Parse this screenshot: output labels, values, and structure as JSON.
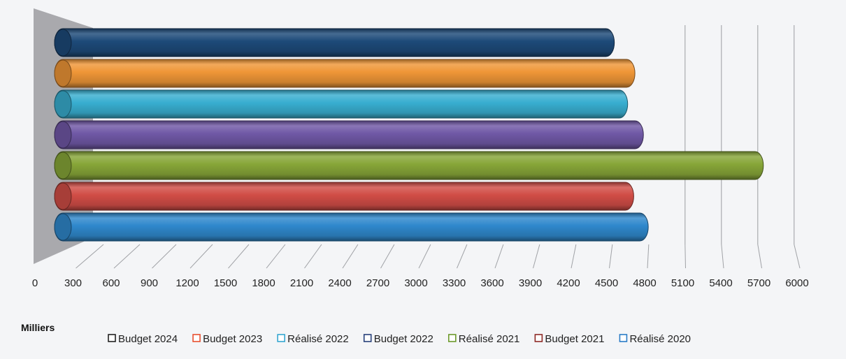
{
  "chart_data": {
    "type": "bar",
    "orientation": "horizontal",
    "style": "3d-cylinder",
    "unit_label": "Milliers",
    "xlim": [
      0,
      6000
    ],
    "x_ticks": [
      "0",
      "300",
      "600",
      "900",
      "1200",
      "1500",
      "1800",
      "2100",
      "2400",
      "2700",
      "3000",
      "3300",
      "3600",
      "3900",
      "4200",
      "4500",
      "4800",
      "5100",
      "5400",
      "5700",
      "6000"
    ],
    "grid": false,
    "legend_position": "bottom",
    "series": [
      {
        "name": "Budget 2024",
        "value": 4620,
        "color": "#1d4a79"
      },
      {
        "name": "Budget 2023",
        "value": 4790,
        "color": "#ef9637"
      },
      {
        "name": "Réalisé 2022",
        "value": 4730,
        "color": "#38aed0"
      },
      {
        "name": "Budget 2022",
        "value": 4860,
        "color": "#7058a6"
      },
      {
        "name": "Réalisé 2021",
        "value": 5850,
        "color": "#87a638"
      },
      {
        "name": "Budget 2021",
        "value": 4780,
        "color": "#d14d46"
      },
      {
        "name": "Réalisé 2020",
        "value": 4900,
        "color": "#2f88cc"
      }
    ],
    "legend_border_colors": [
      "#222222",
      "#e8502f",
      "#35a7d1",
      "#27407a",
      "#6c9a2b",
      "#8e2a26",
      "#2a7cc6"
    ]
  }
}
